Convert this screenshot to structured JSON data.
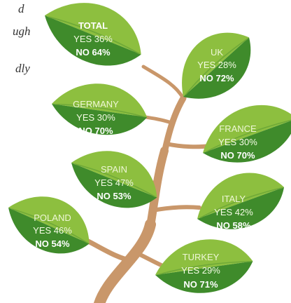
{
  "side_text": [
    "d",
    "ugh",
    "dly"
  ],
  "leaves": [
    {
      "name": "TOTAL",
      "yes": "YES 36%",
      "no": "NO 64%"
    },
    {
      "name": "UK",
      "yes": "YES 28%",
      "no": "NO 72%"
    },
    {
      "name": "GERMANY",
      "yes": "YES 30%",
      "no": "NO 70%"
    },
    {
      "name": "FRANCE",
      "yes": "YES 30%",
      "no": "NO 70%"
    },
    {
      "name": "SPAIN",
      "yes": "YES 47%",
      "no": "NO 53%"
    },
    {
      "name": "ITALY",
      "yes": "YES 42%",
      "no": "NO 58%"
    },
    {
      "name": "POLAND",
      "yes": "YES 46%",
      "no": "NO 54%"
    },
    {
      "name": "TURKEY",
      "yes": "YES 29%",
      "no": "NO 71%"
    }
  ]
}
